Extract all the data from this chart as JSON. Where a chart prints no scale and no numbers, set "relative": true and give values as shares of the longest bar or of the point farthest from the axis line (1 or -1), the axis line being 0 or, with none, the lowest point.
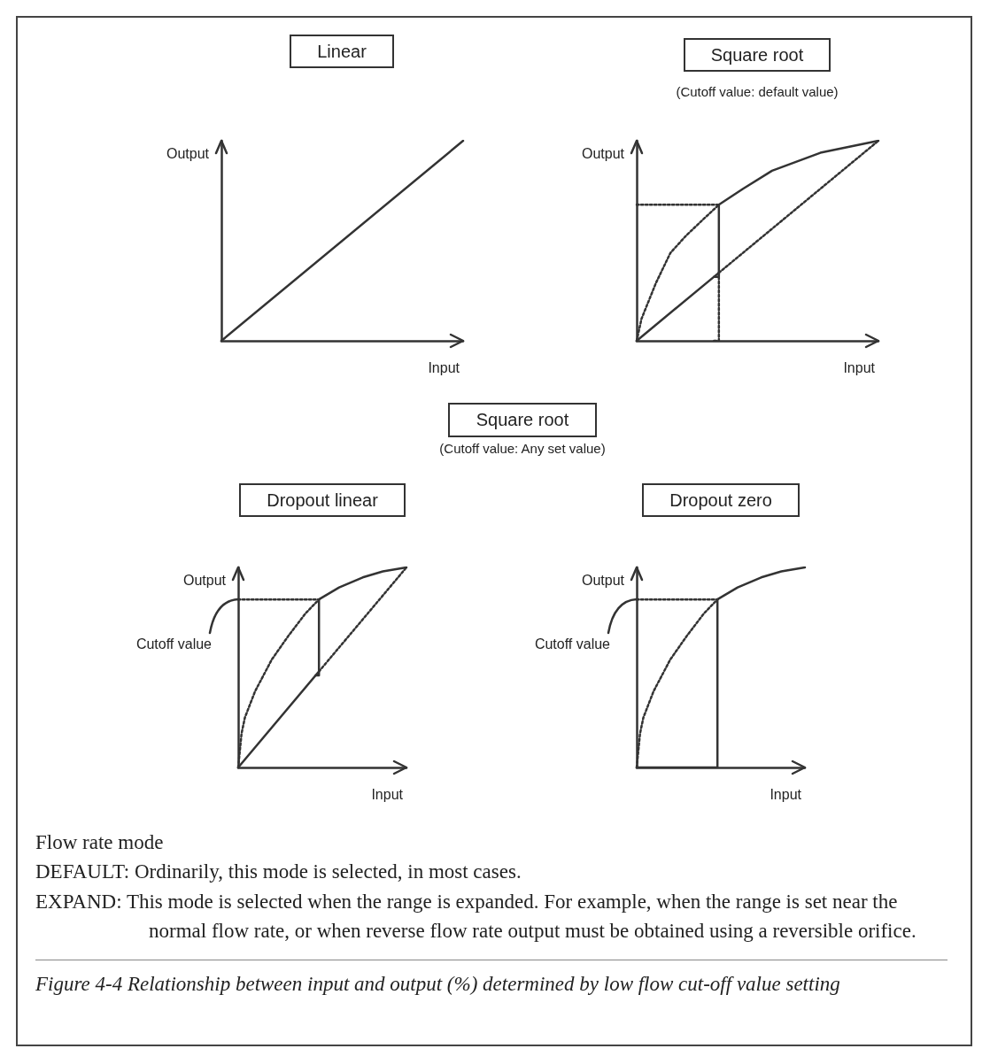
{
  "chart_data": [
    {
      "type": "line",
      "title": "Linear",
      "xlabel": "Input",
      "ylabel": "Output",
      "relative": true,
      "categories": [
        null,
        null,
        null,
        null,
        null,
        null,
        null,
        null,
        null,
        null,
        null,
        null,
        null,
        null,
        null,
        null,
        null,
        null,
        null,
        null,
        null,
        null,
        null,
        null,
        null,
        null,
        null,
        null,
        null,
        null,
        null,
        null,
        null,
        null,
        null,
        null,
        null,
        null,
        null,
        null,
        null,
        null,
        null,
        null,
        null,
        null,
        null,
        null,
        null,
        null,
        null
      ],
      "series": [
        {
          "color": "#333333",
          "line_style": "solid",
          "values": [
            0,
            null,
            null,
            null,
            null,
            null,
            null,
            null,
            null,
            null,
            null,
            null,
            null,
            null,
            null,
            null,
            null,
            null,
            null,
            null,
            null,
            null,
            null,
            null,
            null,
            null,
            null,
            null,
            null,
            null,
            null,
            null,
            null,
            null,
            null,
            null,
            null,
            null,
            null,
            null,
            null,
            null,
            null,
            null,
            null,
            null,
            null,
            null,
            null,
            null,
            1
          ]
        }
      ]
    },
    {
      "type": "line",
      "title": "Square root",
      "subtitle": "(Cutoff value: default value)",
      "xlabel": "Input",
      "ylabel": "Output",
      "relative": true,
      "categories": [
        null,
        null,
        null,
        null,
        null,
        null,
        null,
        null,
        null,
        null,
        null,
        null,
        null,
        null,
        null,
        null,
        null,
        null,
        null,
        null,
        null,
        null,
        null,
        null,
        null,
        null,
        null,
        null,
        null,
        null,
        null,
        null,
        null,
        null,
        null,
        null,
        null,
        null,
        null,
        null,
        null,
        null,
        null,
        null,
        null,
        null,
        null,
        null,
        null,
        null,
        null
      ],
      "series": [
        {
          "color": "#333333",
          "line_style": "solid",
          "values": [
            0,
            null,
            null,
            null,
            null,
            null,
            null,
            null,
            null,
            null,
            null,
            null,
            null,
            null,
            null,
            null,
            null,
            0.34,
            null,
            null,
            null,
            null,
            null,
            null,
            null,
            null,
            null,
            null,
            null,
            null,
            null,
            null,
            null,
            null,
            null,
            null,
            null,
            null,
            null,
            null,
            null,
            null,
            null,
            null,
            null,
            null,
            null,
            null,
            null,
            null,
            null
          ]
        },
        {
          "type": "step",
          "color": "#333333",
          "line_style": "solid",
          "values": [
            null,
            null,
            null,
            null,
            null,
            null,
            null,
            null,
            null,
            null,
            null,
            null,
            null,
            null,
            null,
            null,
            0.32,
            0.68,
            null,
            null,
            null,
            null,
            null,
            null,
            null,
            null,
            null,
            null,
            null,
            null,
            null,
            null,
            null,
            null,
            null,
            null,
            null,
            null,
            null,
            null,
            null,
            null,
            null,
            null,
            null,
            null,
            null,
            null,
            null,
            null,
            null
          ]
        },
        {
          "color": "#333333",
          "line_style": "solid",
          "values": [
            null,
            null,
            null,
            null,
            null,
            null,
            null,
            null,
            null,
            null,
            null,
            null,
            null,
            null,
            null,
            null,
            null,
            0.68,
            null,
            null,
            null,
            null,
            0.76,
            null,
            null,
            null,
            null,
            null,
            0.85,
            null,
            null,
            null,
            null,
            null,
            null,
            null,
            null,
            null,
            0.94,
            null,
            null,
            null,
            null,
            null,
            null,
            null,
            null,
            null,
            null,
            null,
            1
          ]
        },
        {
          "color": "#333333",
          "line_style": "dotted",
          "values": [
            0,
            0.11,
            null,
            null,
            0.29,
            null,
            null,
            0.44,
            null,
            null,
            0.52,
            null,
            null,
            0.59,
            null,
            null,
            null,
            0.68,
            null,
            null,
            null,
            null,
            null,
            null,
            null,
            null,
            null,
            null,
            null,
            null,
            null,
            null,
            null,
            null,
            null,
            null,
            null,
            null,
            null,
            null,
            null,
            null,
            null,
            null,
            null,
            null,
            null,
            null,
            null,
            null,
            null
          ]
        },
        {
          "color": "#333333",
          "line_style": "dotted",
          "values": [
            null,
            null,
            null,
            null,
            null,
            null,
            null,
            null,
            null,
            null,
            null,
            null,
            null,
            null,
            null,
            null,
            null,
            0.34,
            null,
            null,
            null,
            null,
            null,
            null,
            null,
            null,
            null,
            null,
            null,
            null,
            null,
            null,
            null,
            null,
            null,
            null,
            null,
            null,
            null,
            null,
            null,
            null,
            null,
            null,
            null,
            null,
            null,
            null,
            null,
            null,
            1
          ]
        },
        {
          "color": "#333333",
          "line_style": "dotted",
          "values": [
            0.68,
            null,
            null,
            null,
            null,
            null,
            null,
            null,
            null,
            null,
            null,
            null,
            null,
            null,
            null,
            null,
            null,
            0.68,
            null,
            null,
            null,
            null,
            null,
            null,
            null,
            null,
            null,
            null,
            null,
            null,
            null,
            null,
            null,
            null,
            null,
            null,
            null,
            null,
            null,
            null,
            null,
            null,
            null,
            null,
            null,
            null,
            null,
            null,
            null,
            null,
            null
          ]
        },
        {
          "type": "step",
          "color": "#333333",
          "line_style": "dotted",
          "values": [
            null,
            null,
            null,
            null,
            null,
            null,
            null,
            null,
            null,
            null,
            null,
            null,
            null,
            null,
            null,
            null,
            0,
            0.34,
            null,
            null,
            null,
            null,
            null,
            null,
            null,
            null,
            null,
            null,
            null,
            null,
            null,
            null,
            null,
            null,
            null,
            null,
            null,
            null,
            null,
            null,
            null,
            null,
            null,
            null,
            null,
            null,
            null,
            null,
            null,
            null,
            null
          ]
        }
      ]
    },
    {
      "type": "other",
      "title": "Square root",
      "subtitle": "(Cutoff value: Any set value)"
    },
    {
      "type": "line",
      "title": "Dropout linear",
      "xlabel": "Input",
      "ylabel": "Output",
      "relative": true,
      "annotations": [
        "Cutoff value"
      ],
      "categories": [
        null,
        null,
        null,
        null,
        null,
        null,
        null,
        null,
        null,
        null,
        null,
        null,
        null,
        null,
        null,
        null,
        null,
        null,
        null,
        null,
        null,
        null,
        null,
        null,
        null,
        null,
        null,
        null,
        null,
        null,
        null,
        null,
        null,
        null,
        null,
        null,
        null,
        null,
        null,
        null,
        null,
        null,
        null,
        null,
        null,
        null,
        null,
        null,
        null,
        null,
        null
      ],
      "series": [
        {
          "color": "#333333",
          "line_style": "solid",
          "values": [
            null,
            null,
            null,
            null,
            null,
            null,
            null,
            null,
            null,
            null,
            null,
            null,
            null,
            null,
            null,
            null,
            null,
            null,
            null,
            null,
            null,
            null,
            null,
            null,
            0.84,
            null,
            null,
            null,
            null,
            null,
            0.9,
            null,
            null,
            null,
            null,
            null,
            null,
            0.95,
            null,
            null,
            null,
            null,
            null,
            0.98,
            null,
            null,
            null,
            null,
            null,
            null,
            1
          ]
        },
        {
          "color": "#333333",
          "line_style": "dotted",
          "values": [
            0,
            0.17,
            0.25,
            null,
            null,
            0.38,
            null,
            null,
            null,
            null,
            0.54,
            null,
            null,
            null,
            null,
            0.66,
            null,
            null,
            null,
            null,
            0.77,
            null,
            null,
            null,
            0.84,
            null,
            null,
            null,
            null,
            null,
            null,
            null,
            null,
            null,
            null,
            null,
            null,
            null,
            null,
            null,
            null,
            null,
            null,
            null,
            null,
            null,
            null,
            null,
            null,
            null,
            null
          ]
        },
        {
          "color": "#333333",
          "line_style": "solid",
          "values": [
            0,
            null,
            null,
            null,
            null,
            null,
            null,
            null,
            null,
            null,
            null,
            null,
            null,
            null,
            null,
            null,
            null,
            null,
            null,
            null,
            null,
            null,
            null,
            null,
            0.48,
            null,
            null,
            null,
            null,
            null,
            null,
            null,
            null,
            null,
            null,
            null,
            null,
            null,
            null,
            null,
            null,
            null,
            null,
            null,
            null,
            null,
            null,
            null,
            null,
            null,
            null
          ]
        },
        {
          "color": "#333333",
          "line_style": "dotted",
          "values": [
            null,
            null,
            null,
            null,
            null,
            null,
            null,
            null,
            null,
            null,
            null,
            null,
            null,
            null,
            null,
            null,
            null,
            null,
            null,
            null,
            null,
            null,
            null,
            null,
            0.48,
            null,
            null,
            null,
            null,
            null,
            null,
            null,
            null,
            null,
            null,
            null,
            null,
            null,
            null,
            null,
            null,
            null,
            null,
            null,
            null,
            null,
            null,
            null,
            null,
            null,
            1
          ]
        },
        {
          "type": "step",
          "color": "#333333",
          "line_style": "solid",
          "values": [
            null,
            null,
            null,
            null,
            null,
            null,
            null,
            null,
            null,
            null,
            null,
            null,
            null,
            null,
            null,
            null,
            null,
            null,
            null,
            null,
            null,
            null,
            null,
            0.46,
            0.84,
            null,
            null,
            null,
            null,
            null,
            null,
            null,
            null,
            null,
            null,
            null,
            null,
            null,
            null,
            null,
            null,
            null,
            null,
            null,
            null,
            null,
            null,
            null,
            null,
            null,
            null
          ]
        },
        {
          "color": "#333333",
          "line_style": "dotted",
          "values": [
            0.84,
            null,
            null,
            null,
            null,
            null,
            null,
            null,
            null,
            null,
            null,
            null,
            null,
            null,
            null,
            null,
            null,
            null,
            null,
            null,
            null,
            null,
            null,
            null,
            0.84,
            null,
            null,
            null,
            null,
            null,
            null,
            null,
            null,
            null,
            null,
            null,
            null,
            null,
            null,
            null,
            null,
            null,
            null,
            null,
            null,
            null,
            null,
            null,
            null,
            null,
            null
          ]
        }
      ]
    },
    {
      "type": "line",
      "title": "Dropout zero",
      "xlabel": "Input",
      "ylabel": "Output",
      "relative": true,
      "annotations": [
        "Cutoff value"
      ],
      "categories": [
        null,
        null,
        null,
        null,
        null,
        null,
        null,
        null,
        null,
        null,
        null,
        null,
        null,
        null,
        null,
        null,
        null,
        null,
        null,
        null,
        null,
        null,
        null,
        null,
        null,
        null,
        null,
        null,
        null,
        null,
        null,
        null,
        null,
        null,
        null,
        null,
        null,
        null,
        null,
        null,
        null,
        null,
        null,
        null,
        null,
        null,
        null,
        null,
        null,
        null,
        null
      ],
      "series": [
        {
          "color": "#333333",
          "line_style": "solid",
          "values": [
            null,
            null,
            null,
            null,
            null,
            null,
            null,
            null,
            null,
            null,
            null,
            null,
            null,
            null,
            null,
            null,
            null,
            null,
            null,
            null,
            null,
            null,
            null,
            null,
            0.84,
            null,
            null,
            null,
            null,
            null,
            0.9,
            null,
            null,
            null,
            null,
            null,
            null,
            0.95,
            null,
            null,
            null,
            null,
            null,
            0.98,
            null,
            null,
            null,
            null,
            null,
            null,
            1
          ]
        },
        {
          "color": "#333333",
          "line_style": "dotted",
          "values": [
            0,
            0.17,
            0.25,
            null,
            null,
            0.38,
            null,
            null,
            null,
            null,
            0.54,
            null,
            null,
            null,
            null,
            0.66,
            null,
            null,
            null,
            null,
            0.77,
            null,
            null,
            null,
            0.84,
            null,
            null,
            null,
            null,
            null,
            null,
            null,
            null,
            null,
            null,
            null,
            null,
            null,
            null,
            null,
            null,
            null,
            null,
            null,
            null,
            null,
            null,
            null,
            null,
            null,
            null
          ]
        },
        {
          "type": "step",
          "color": "#333333",
          "line_style": "solid",
          "values": [
            0,
            null,
            null,
            null,
            null,
            null,
            null,
            null,
            null,
            null,
            null,
            null,
            null,
            null,
            null,
            null,
            null,
            null,
            null,
            null,
            null,
            null,
            null,
            0,
            0.84,
            null,
            null,
            null,
            null,
            null,
            null,
            null,
            null,
            null,
            null,
            null,
            null,
            null,
            null,
            null,
            null,
            null,
            null,
            null,
            null,
            null,
            null,
            null,
            null,
            null,
            null
          ]
        },
        {
          "color": "#333333",
          "line_style": "dotted",
          "values": [
            0.84,
            null,
            null,
            null,
            null,
            null,
            null,
            null,
            null,
            null,
            null,
            null,
            null,
            null,
            null,
            null,
            null,
            null,
            null,
            null,
            null,
            null,
            null,
            null,
            0.84,
            null,
            null,
            null,
            null,
            null,
            null,
            null,
            null,
            null,
            null,
            null,
            null,
            null,
            null,
            null,
            null,
            null,
            null,
            null,
            null,
            null,
            null,
            null,
            null,
            null,
            null
          ]
        }
      ]
    },
    {
      "type": "other",
      "annotations": [
        "Flow rate mode",
        "DEFAULT: Ordinarily, this mode is selected, in most cases.",
        "EXPAND: This mode is selected when the range is expanded. For example, when the range is set near the normal flow rate, or when reverse flow rate output must be obtained using a reversible orifice.",
        "Figure 4-4 Relationship between input and output (%) determined by low flow cut-off value setting"
      ]
    }
  ]
}
